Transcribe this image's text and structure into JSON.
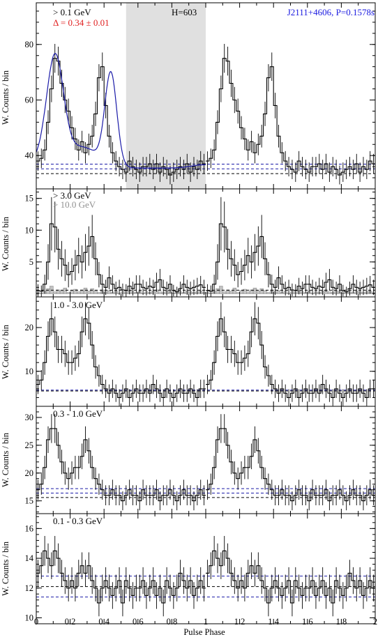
{
  "figure": {
    "xlabel": "Pulse Phase",
    "x_ticks": [
      "0",
      "0.2",
      "0.4",
      "0.6",
      "0.8",
      "1",
      "1.2",
      "1.4",
      "1.6",
      "1.8",
      "2"
    ],
    "colors": {
      "histogram": "#000000",
      "fit": "#1a1aa8",
      "background_line": "#1a1aa8",
      "offpulse_shade": "#e0e0e0",
      "name_text": "#1a1ae0",
      "delta_text": "#e02020",
      "overlay_10gev": "#909090"
    }
  },
  "chart_data": [
    {
      "type": "bar",
      "panel": "> 0.1 GeV",
      "ylabel": "W. Counts / bin",
      "ylim": [
        28,
        95
      ],
      "y_ticks": [
        40,
        60,
        80
      ],
      "annotations": {
        "energy": "> 0.1 GeV",
        "delta": "Δ = 0.34 ± 0.01",
        "htest": "H=603",
        "source": "J2111+4606, P=0.1578s"
      },
      "offpulse_interval": [
        0.53,
        1.0
      ],
      "background_levels": [
        33.5,
        35.2,
        36.9
      ],
      "dashed_style": [
        "black",
        "blue",
        "blue"
      ],
      "fit_curve": true,
      "bin_width": 0.02,
      "bins": 50,
      "x_start": 0,
      "values": [
        38,
        39,
        42,
        52,
        64,
        75,
        74,
        66,
        60,
        56,
        50,
        46,
        42,
        45,
        41,
        44,
        47,
        55,
        68,
        72,
        58,
        47,
        41,
        38,
        36,
        35,
        34,
        38,
        36,
        35,
        34,
        36,
        36,
        37,
        35,
        37,
        34,
        36,
        35,
        33,
        34,
        35,
        36,
        35,
        37,
        34,
        36,
        35,
        38,
        37
      ],
      "errors": [
        3.5,
        3.5,
        3.8,
        4.3,
        4.8,
        5.2,
        5.2,
        4.9,
        4.7,
        4.5,
        4.2,
        4.0,
        3.8,
        3.9,
        3.8,
        3.9,
        4.1,
        4.4,
        4.9,
        5.1,
        4.6,
        4.1,
        3.8,
        3.6,
        3.5,
        3.5,
        3.5,
        3.6,
        3.5,
        3.5,
        3.5,
        3.5,
        3.5,
        3.6,
        3.5,
        3.6,
        3.5,
        3.5,
        3.5,
        3.4,
        3.5,
        3.5,
        3.5,
        3.5,
        3.6,
        3.5,
        3.5,
        3.5,
        3.6,
        3.6
      ]
    },
    {
      "type": "bar",
      "panel": "> 3.0 GeV",
      "ylabel": "W. Counts / bin",
      "ylim": [
        -0.5,
        16.5
      ],
      "y_ticks": [
        5,
        10,
        15
      ],
      "annotations": {
        "energy": "> 3.0 GeV",
        "overlay": "> 10.0 GeV"
      },
      "background_levels": [
        0.55
      ],
      "dashed_style": [
        "black"
      ],
      "bin_width": 0.02,
      "bins": 50,
      "x_start": 0,
      "values": [
        0.5,
        0.4,
        1.5,
        5.0,
        11.0,
        10.5,
        7.0,
        5.5,
        4.5,
        3.0,
        3.5,
        4.5,
        6.0,
        5.0,
        6.5,
        7.5,
        9.0,
        5.5,
        3.0,
        1.5,
        1.0,
        2.5,
        1.5,
        0.8,
        1.0,
        0.6,
        0.5,
        1.2,
        0.8,
        1.5,
        1.5,
        1.0,
        0.8,
        1.2,
        1.0,
        1.8,
        2.2,
        1.0,
        0.8,
        1.5,
        0.5,
        0.3,
        0.8,
        1.5,
        1.0,
        0.8,
        1.0,
        1.2,
        1.4,
        1.0
      ],
      "errors": [
        1.0,
        0.9,
        1.5,
        2.8,
        4.2,
        4.0,
        3.2,
        2.8,
        2.5,
        2.0,
        2.1,
        2.4,
        2.8,
        2.6,
        2.9,
        3.1,
        3.4,
        2.6,
        2.0,
        1.5,
        1.2,
        1.8,
        1.4,
        1.1,
        1.2,
        1.0,
        1.0,
        1.3,
        1.1,
        1.4,
        1.4,
        1.2,
        1.1,
        1.3,
        1.2,
        1.5,
        1.7,
        1.2,
        1.1,
        1.4,
        0.9,
        0.8,
        1.1,
        1.4,
        1.2,
        1.1,
        1.2,
        1.3,
        1.4,
        1.2
      ],
      "overlay_values": [
        0.2,
        0.1,
        0.4,
        0.8,
        1.2,
        0.3,
        0.6,
        0.4,
        0.9,
        0.2,
        0.5,
        0.7,
        0.3,
        0.6,
        0.9,
        0.4,
        0.8,
        0.5,
        0.2,
        0.6,
        0.3,
        0.5,
        0.2,
        0.4,
        0.1,
        0.3,
        0.2,
        0.5,
        0.3,
        0.2,
        0.4,
        0.1,
        0.3,
        0.2,
        0.4,
        0.6,
        0.3,
        0.2,
        0.5,
        0.3,
        0.1,
        0.2,
        0.3,
        0.2,
        0.4,
        0.3,
        0.2,
        0.3,
        0.4,
        0.2
      ]
    },
    {
      "type": "bar",
      "panel": "1.0 - 3.0 GeV",
      "ylabel": "W. Counts / bin",
      "ylim": [
        2,
        27
      ],
      "y_ticks": [
        10,
        20
      ],
      "annotations": {
        "energy": "1.0 - 3.0 GeV"
      },
      "background_levels": [
        5.5,
        5.7
      ],
      "dashed_style": [
        "black",
        "blue"
      ],
      "bin_width": 0.02,
      "bins": 50,
      "x_start": 0,
      "values": [
        7,
        8,
        12,
        18,
        22,
        19,
        15,
        15,
        14,
        12,
        12,
        13,
        14,
        19,
        22,
        21,
        16,
        11,
        9,
        7,
        6,
        5,
        6,
        5,
        4,
        5,
        6,
        4,
        5,
        6,
        5,
        5,
        6,
        5,
        7,
        6,
        5,
        4,
        6,
        5,
        4,
        5,
        6,
        5,
        5,
        6,
        5,
        4,
        6,
        6
      ],
      "errors": [
        2.2,
        2.3,
        2.8,
        3.4,
        3.8,
        3.5,
        3.1,
        3.1,
        3.0,
        2.8,
        2.8,
        2.9,
        3.0,
        3.5,
        3.8,
        3.7,
        3.2,
        2.7,
        2.5,
        2.2,
        2.1,
        2.0,
        2.1,
        2.0,
        1.9,
        2.0,
        2.1,
        1.9,
        2.0,
        2.1,
        2.0,
        2.0,
        2.1,
        2.0,
        2.2,
        2.1,
        2.0,
        1.9,
        2.1,
        2.0,
        1.9,
        2.0,
        2.1,
        2.0,
        2.0,
        2.1,
        2.0,
        1.9,
        2.1,
        2.1
      ]
    },
    {
      "type": "bar",
      "panel": "0.3 - 1.0 GeV",
      "ylabel": "W. Counts / bin",
      "ylim": [
        12.7,
        32
      ],
      "y_ticks": [
        15,
        20,
        25,
        30
      ],
      "annotations": {
        "energy": "0.3 - 1.0 GeV"
      },
      "background_levels": [
        15.6,
        16.4,
        17.2
      ],
      "dashed_style": [
        "black",
        "blue",
        "blue"
      ],
      "bin_width": 0.02,
      "bins": 50,
      "x_start": 0,
      "values": [
        17,
        18,
        21,
        26,
        28,
        28,
        25,
        22,
        20,
        19,
        20,
        21,
        21,
        23,
        26,
        24,
        21,
        19,
        18,
        17,
        16,
        16,
        17,
        16,
        16,
        15,
        16,
        17,
        16,
        16,
        15,
        17,
        16,
        16,
        16,
        17,
        15,
        16,
        16,
        17,
        16,
        15,
        16,
        17,
        16,
        16,
        15,
        16,
        17,
        16
      ],
      "errors": [
        1.8,
        1.9,
        2.1,
        2.4,
        2.6,
        2.6,
        2.4,
        2.2,
        2.1,
        2.0,
        2.1,
        2.1,
        2.1,
        2.3,
        2.4,
        2.3,
        2.1,
        2.0,
        1.9,
        1.8,
        1.8,
        1.8,
        1.8,
        1.8,
        1.8,
        1.7,
        1.8,
        1.8,
        1.8,
        1.8,
        1.7,
        1.8,
        1.8,
        1.8,
        1.8,
        1.8,
        1.7,
        1.8,
        1.8,
        1.8,
        1.8,
        1.7,
        1.8,
        1.8,
        1.8,
        1.8,
        1.7,
        1.8,
        1.8,
        1.8
      ]
    },
    {
      "type": "bar",
      "panel": "0.1 - 0.3 GeV",
      "ylabel": "W. Counts / bin",
      "ylim": [
        9.6,
        17.0
      ],
      "y_ticks": [
        10,
        12,
        14,
        16
      ],
      "annotations": {
        "energy": "0.1 - 0.3 GeV"
      },
      "background_levels": [
        11.4,
        12.1,
        12.8
      ],
      "dashed_style": [
        "blue",
        "black",
        "blue"
      ],
      "bin_width": 0.02,
      "bins": 50,
      "x_start": 0,
      "values": [
        13,
        13.5,
        14.5,
        14,
        13.5,
        14.5,
        14,
        13,
        12.5,
        12,
        12.5,
        12,
        13,
        13.5,
        13,
        13.5,
        12.5,
        12,
        11,
        12,
        12.5,
        12,
        11.5,
        12,
        12.5,
        11,
        12.5,
        12,
        11.5,
        12,
        12,
        12.5,
        11.5,
        12,
        12.5,
        11.5,
        12,
        11,
        12.5,
        12,
        11.5,
        12,
        13,
        12.5,
        12,
        12.5,
        11.5,
        12,
        12.5,
        12
      ],
      "errors": [
        0.9,
        0.9,
        1.0,
        1.0,
        0.9,
        1.0,
        1.0,
        0.9,
        0.9,
        0.9,
        0.9,
        0.9,
        0.9,
        0.9,
        0.9,
        0.9,
        0.9,
        0.9,
        0.9,
        0.9,
        0.9,
        0.9,
        0.9,
        0.9,
        0.9,
        0.9,
        0.9,
        0.9,
        0.9,
        0.9,
        0.9,
        0.9,
        0.9,
        0.9,
        0.9,
        0.9,
        0.9,
        0.9,
        0.9,
        0.9,
        0.9,
        0.9,
        0.9,
        0.9,
        0.9,
        0.9,
        0.9,
        0.9,
        0.9,
        0.9
      ]
    }
  ]
}
